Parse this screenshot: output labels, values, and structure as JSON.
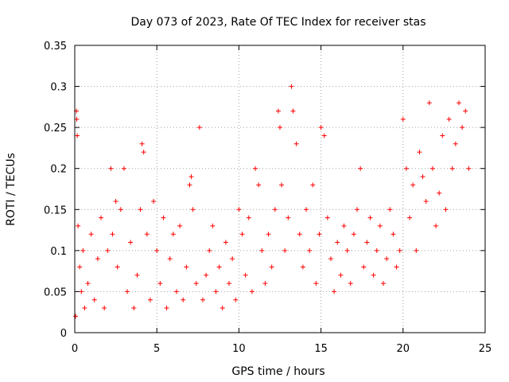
{
  "chart_data": {
    "type": "scatter",
    "title": "Day 073 of 2023, Rate Of TEC Index for receiver stas",
    "xlabel": "GPS time / hours",
    "ylabel": "ROTI / TECUs",
    "xlim": [
      0,
      25
    ],
    "ylim": [
      0,
      0.35
    ],
    "xticks": [
      0,
      5,
      10,
      15,
      20,
      25
    ],
    "yticks": [
      0,
      0.05,
      0.1,
      0.15,
      0.2,
      0.25,
      0.3,
      0.35
    ],
    "xtick_labels": [
      "0",
      "5",
      "10",
      "15",
      "20",
      "25"
    ],
    "ytick_labels": [
      "0",
      "0.05",
      "0.1",
      "0.15",
      "0.2",
      "0.25",
      "0.3",
      "0.35"
    ],
    "grid": true,
    "marker": "plus",
    "color": "#ff0000",
    "series": [
      {
        "x": [
          0.05,
          0.1,
          0.12,
          0.15,
          0.2,
          0.3,
          0.4,
          0.5,
          0.6,
          0.8,
          1.0,
          1.2,
          1.4,
          1.6,
          1.8,
          2.0,
          2.2,
          2.3,
          2.5,
          2.6,
          2.8,
          3.0,
          3.2,
          3.4,
          3.6,
          3.8,
          4.0,
          4.1,
          4.2,
          4.4,
          4.6,
          4.8,
          5.0,
          5.2,
          5.4,
          5.6,
          5.8,
          6.0,
          6.2,
          6.4,
          6.6,
          6.8,
          7.0,
          7.1,
          7.2,
          7.4,
          7.6,
          7.8,
          8.0,
          8.2,
          8.4,
          8.6,
          8.8,
          9.0,
          9.2,
          9.4,
          9.6,
          9.8,
          10.0,
          10.2,
          10.4,
          10.6,
          10.8,
          11.0,
          11.2,
          11.4,
          11.6,
          11.8,
          12.0,
          12.2,
          12.4,
          12.5,
          12.6,
          12.8,
          13.0,
          13.2,
          13.3,
          13.5,
          13.7,
          13.9,
          14.1,
          14.3,
          14.5,
          14.7,
          14.9,
          15.0,
          15.2,
          15.4,
          15.6,
          15.8,
          16.0,
          16.2,
          16.4,
          16.6,
          16.8,
          17.0,
          17.2,
          17.4,
          17.6,
          17.8,
          18.0,
          18.2,
          18.4,
          18.6,
          18.8,
          19.0,
          19.2,
          19.4,
          19.6,
          19.8,
          20.0,
          20.2,
          20.4,
          20.6,
          20.8,
          21.0,
          21.2,
          21.4,
          21.6,
          21.8,
          22.0,
          22.2,
          22.4,
          22.6,
          22.8,
          23.0,
          23.2,
          23.4,
          23.6,
          23.8,
          24.0
        ],
        "y": [
          0.02,
          0.27,
          0.26,
          0.24,
          0.13,
          0.08,
          0.05,
          0.1,
          0.03,
          0.06,
          0.12,
          0.04,
          0.09,
          0.14,
          0.03,
          0.1,
          0.2,
          0.12,
          0.16,
          0.08,
          0.15,
          0.2,
          0.05,
          0.11,
          0.03,
          0.07,
          0.15,
          0.23,
          0.22,
          0.12,
          0.04,
          0.16,
          0.1,
          0.06,
          0.14,
          0.03,
          0.09,
          0.12,
          0.05,
          0.13,
          0.04,
          0.08,
          0.18,
          0.19,
          0.15,
          0.06,
          0.25,
          0.04,
          0.07,
          0.1,
          0.13,
          0.05,
          0.08,
          0.03,
          0.11,
          0.06,
          0.09,
          0.04,
          0.15,
          0.12,
          0.07,
          0.14,
          0.05,
          0.2,
          0.18,
          0.1,
          0.06,
          0.12,
          0.08,
          0.15,
          0.27,
          0.25,
          0.18,
          0.1,
          0.14,
          0.3,
          0.27,
          0.23,
          0.12,
          0.08,
          0.15,
          0.1,
          0.18,
          0.06,
          0.12,
          0.25,
          0.24,
          0.14,
          0.09,
          0.05,
          0.11,
          0.07,
          0.13,
          0.1,
          0.06,
          0.12,
          0.15,
          0.2,
          0.08,
          0.11,
          0.14,
          0.07,
          0.1,
          0.13,
          0.06,
          0.09,
          0.15,
          0.12,
          0.08,
          0.1,
          0.26,
          0.2,
          0.14,
          0.18,
          0.1,
          0.22,
          0.19,
          0.16,
          0.28,
          0.2,
          0.13,
          0.17,
          0.24,
          0.15,
          0.26,
          0.2,
          0.23,
          0.28,
          0.25,
          0.27,
          0.2
        ]
      }
    ]
  }
}
